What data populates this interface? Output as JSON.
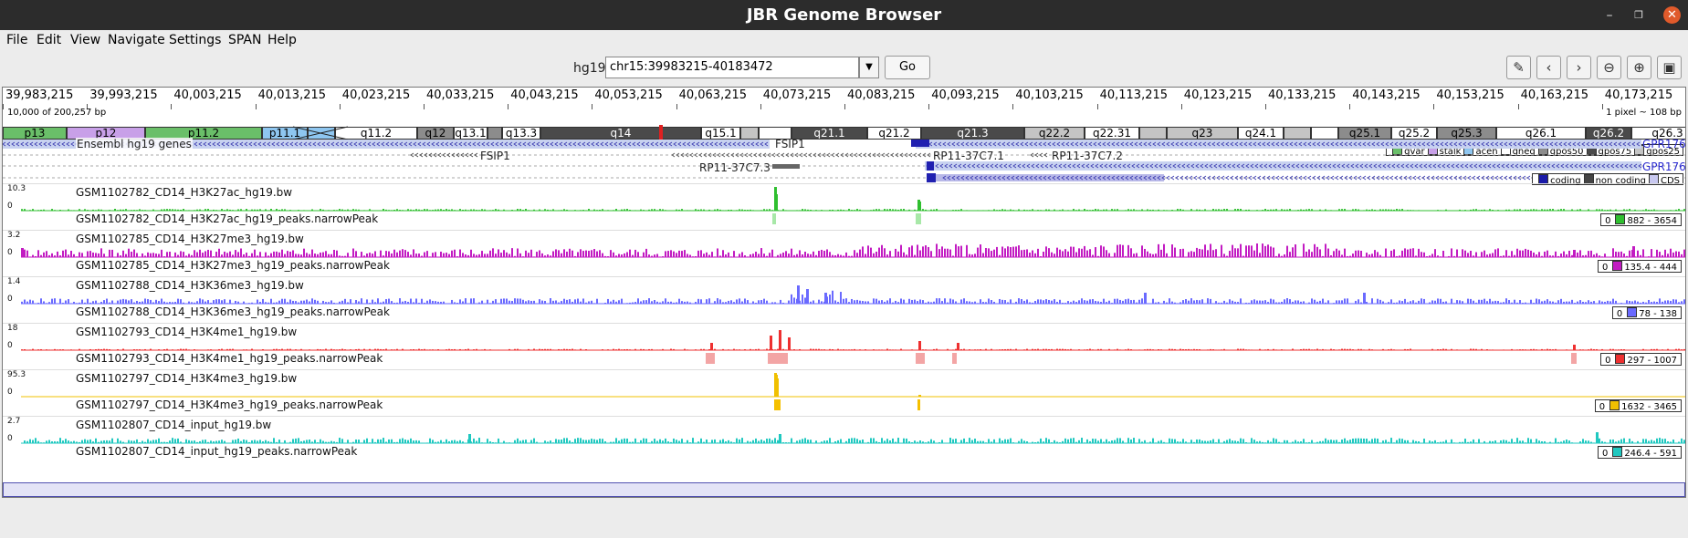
{
  "window": {
    "title": "JBR Genome Browser"
  },
  "menu": [
    "File",
    "Edit",
    "View",
    "Navigate",
    "Settings",
    "SPAN",
    "Help"
  ],
  "toolbar": {
    "genome": "hg19",
    "locus": "chr15:39983215-40183472",
    "go_label": "Go",
    "icons": [
      "ruler-icon",
      "back-icon",
      "forward-icon",
      "zoom-out-icon",
      "zoom-in-icon",
      "fit-icon"
    ]
  },
  "ruler": {
    "ticks": [
      "39,983,215",
      "39,993,215",
      "40,003,215",
      "40,013,215",
      "40,023,215",
      "40,033,215",
      "40,043,215",
      "40,053,215",
      "40,063,215",
      "40,073,215",
      "40,083,215",
      "40,093,215",
      "40,103,215",
      "40,113,215",
      "40,123,215",
      "40,133,215",
      "40,143,215",
      "40,153,215",
      "40,163,215",
      "40,173,215"
    ],
    "window_info": "10,000 of 200,257 bp",
    "resolution": "1 pixel ~ 108 bp"
  },
  "ideogram": {
    "bands": [
      {
        "label": "p13",
        "stain": "gvar"
      },
      {
        "label": "p12",
        "stain": "stalk"
      },
      {
        "label": "p11.2",
        "stain": "gvar"
      },
      {
        "label": "p11.1",
        "stain": "acen"
      },
      {
        "label": "",
        "stain": "acen"
      },
      {
        "label": "q11.2",
        "stain": "gneg"
      },
      {
        "label": "q12",
        "stain": "gpos50"
      },
      {
        "label": "q13.1",
        "stain": "gneg"
      },
      {
        "label": "",
        "stain": "gpos50"
      },
      {
        "label": "q13.3",
        "stain": "gneg"
      },
      {
        "label": "q14",
        "stain": "gpos75"
      },
      {
        "label": "q15.1",
        "stain": "gneg"
      },
      {
        "label": "",
        "stain": "gpos25"
      },
      {
        "label": "",
        "stain": "gneg"
      },
      {
        "label": "q21.1",
        "stain": "gpos75"
      },
      {
        "label": "q21.2",
        "stain": "gneg"
      },
      {
        "label": "q21.3",
        "stain": "gpos75"
      },
      {
        "label": "q22.2",
        "stain": "gpos25"
      },
      {
        "label": "q22.31",
        "stain": "gneg"
      },
      {
        "label": "",
        "stain": "gpos25"
      },
      {
        "label": "q23",
        "stain": "gpos25"
      },
      {
        "label": "q24.1",
        "stain": "gneg"
      },
      {
        "label": "",
        "stain": "gpos25"
      },
      {
        "label": "",
        "stain": "gneg"
      },
      {
        "label": "q25.1",
        "stain": "gpos50"
      },
      {
        "label": "q25.2",
        "stain": "gneg"
      },
      {
        "label": "q25.3",
        "stain": "gpos50"
      },
      {
        "label": "q26.1",
        "stain": "gneg"
      },
      {
        "label": "q26.2",
        "stain": "gpos75"
      },
      {
        "label": "q26.3",
        "stain": "gneg"
      }
    ],
    "legend": [
      "gvar",
      "stalk",
      "acen",
      "gneg",
      "gpos50",
      "gpos75",
      "gpos25"
    ]
  },
  "genes": {
    "track_label": "Ensembl hg19 genes",
    "names": [
      "FSIP1",
      "FSIP1",
      "RP11-37C7.3",
      "RP11-37C7.1",
      "RP11-37C7.2",
      "GPR176",
      "GPR176"
    ],
    "legend": [
      "coding",
      "non coding",
      "CDS"
    ]
  },
  "tracks": [
    {
      "name": "GSM1102782_CD14_H3K27ac_hg19.bw",
      "peaks": "GSM1102782_CD14_H3K27ac_hg19_peaks.narrowPeak",
      "max": "10.3",
      "min": "0",
      "range_lo": "0",
      "range": "882 - 3654",
      "color": "#2fbf2f",
      "peak_color": "#a8e8a8"
    },
    {
      "name": "GSM1102785_CD14_H3K27me3_hg19.bw",
      "peaks": "GSM1102785_CD14_H3K27me3_hg19_peaks.narrowPeak",
      "max": "3.2",
      "min": "0",
      "range_lo": "0",
      "range": "135.4 - 444",
      "color": "#c21bc2",
      "peak_color": "#e8a8e8"
    },
    {
      "name": "GSM1102788_CD14_H3K36me3_hg19.bw",
      "peaks": "GSM1102788_CD14_H3K36me3_hg19_peaks.narrowPeak",
      "max": "1.4",
      "min": "0",
      "range_lo": "0",
      "range": "78 - 138",
      "color": "#6a6aff",
      "peak_color": "#b8b8ff"
    },
    {
      "name": "GSM1102793_CD14_H3K4me1_hg19.bw",
      "peaks": "GSM1102793_CD14_H3K4me1_hg19_peaks.narrowPeak",
      "max": "18",
      "min": "0",
      "range_lo": "0",
      "range": "297 - 1007",
      "color": "#ee3030",
      "peak_color": "#f3a5a5"
    },
    {
      "name": "GSM1102797_CD14_H3K4me3_hg19.bw",
      "peaks": "GSM1102797_CD14_H3K4me3_hg19_peaks.narrowPeak",
      "max": "95.3",
      "min": "0",
      "range_lo": "0",
      "range": "1632 - 3465",
      "color": "#f0c000",
      "peak_color": "#f5c000"
    },
    {
      "name": "GSM1102807_CD14_input_hg19.bw",
      "peaks": "GSM1102807_CD14_input_hg19_peaks.narrowPeak",
      "max": "2.7",
      "min": "0",
      "range_lo": "0",
      "range": "246.4 - 591",
      "color": "#20c8c0",
      "peak_color": "#20c8c0"
    }
  ]
}
